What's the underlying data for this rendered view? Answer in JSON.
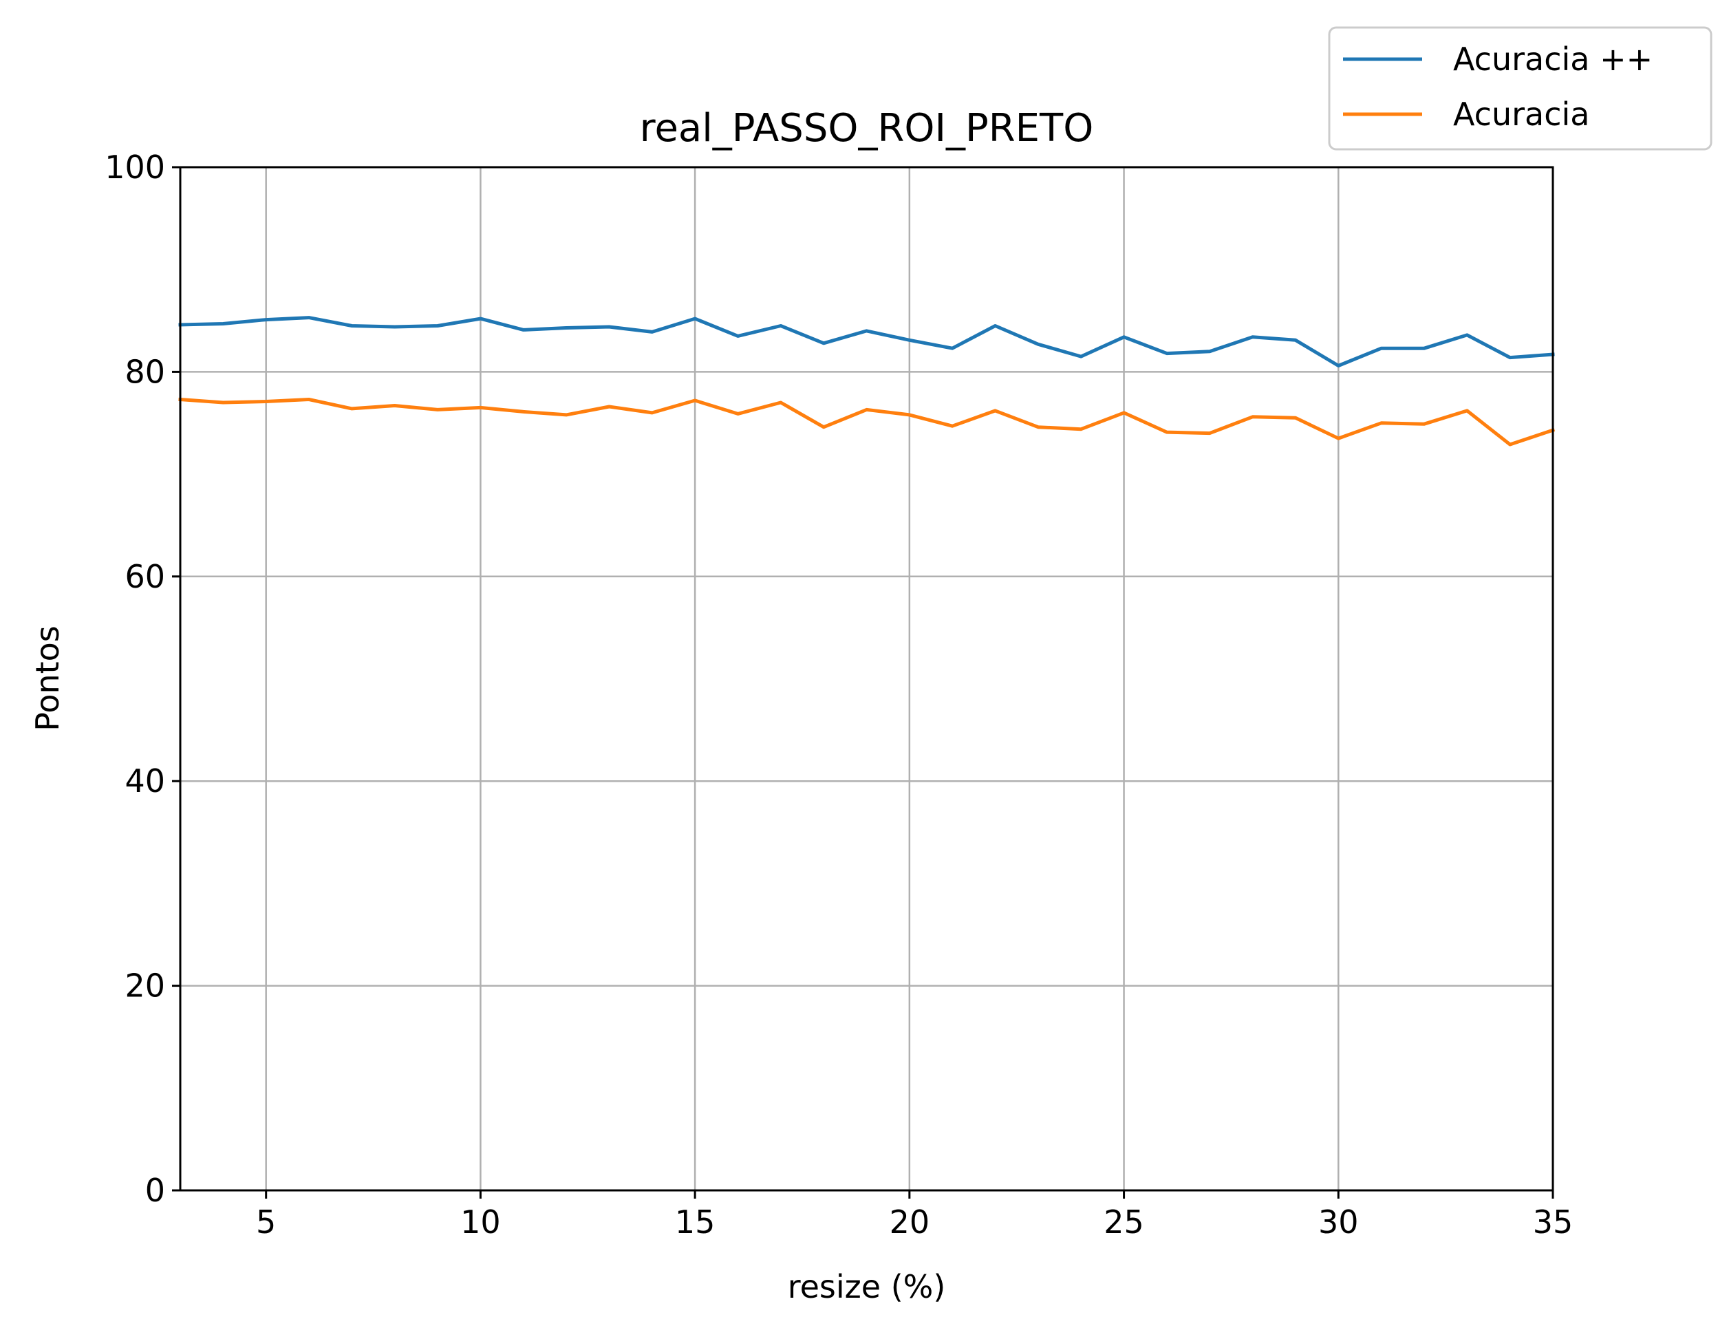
{
  "chart_data": {
    "type": "line",
    "title": "real_PASSO_ROI_PRETO",
    "xlabel": "resize (%)",
    "ylabel": "Pontos",
    "xlim": [
      3,
      35
    ],
    "ylim": [
      0,
      100
    ],
    "xticks": [
      5,
      10,
      15,
      20,
      25,
      30,
      35
    ],
    "yticks": [
      0,
      20,
      40,
      60,
      80,
      100
    ],
    "grid": true,
    "legend_position": "outside top-right",
    "x": [
      3,
      4,
      5,
      6,
      7,
      8,
      9,
      10,
      11,
      12,
      13,
      14,
      15,
      16,
      17,
      18,
      19,
      20,
      21,
      22,
      23,
      24,
      25,
      26,
      27,
      28,
      29,
      30,
      31,
      32,
      33,
      34,
      35
    ],
    "series": [
      {
        "name": "Acuracia ++",
        "color": "#1f77b4",
        "values": [
          84.6,
          84.7,
          85.1,
          85.3,
          84.5,
          84.4,
          84.5,
          85.2,
          84.1,
          84.3,
          84.4,
          83.9,
          85.2,
          83.5,
          84.5,
          82.8,
          84.0,
          83.1,
          82.3,
          84.5,
          82.7,
          81.5,
          83.4,
          81.8,
          82.0,
          83.4,
          83.1,
          80.6,
          82.3,
          82.3,
          83.6,
          81.4,
          81.7
        ]
      },
      {
        "name": "Acuracia",
        "color": "#ff7f0e",
        "values": [
          77.3,
          77.0,
          77.1,
          77.3,
          76.4,
          76.7,
          76.3,
          76.5,
          76.1,
          75.8,
          76.6,
          76.0,
          77.2,
          75.9,
          77.0,
          74.6,
          76.3,
          75.8,
          74.7,
          76.2,
          74.6,
          74.4,
          76.0,
          74.1,
          74.0,
          75.6,
          75.5,
          73.5,
          75.0,
          74.9,
          76.2,
          72.9,
          74.3
        ]
      }
    ]
  }
}
